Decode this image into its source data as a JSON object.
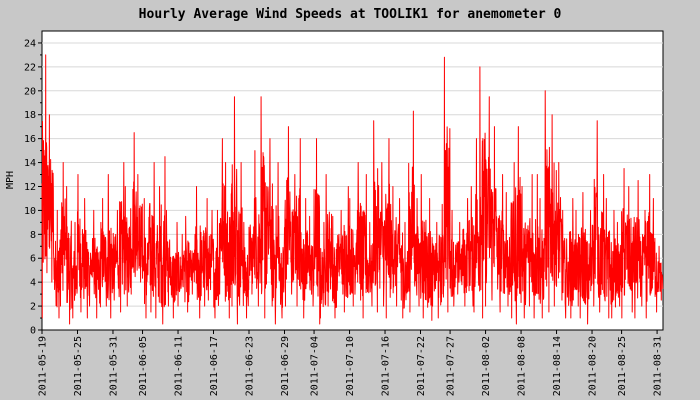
{
  "chart_data": {
    "type": "line",
    "title": "Hourly Average Wind Speeds at TOOLIK1 for anemometer 0",
    "xlabel": "",
    "ylabel": "MPH",
    "ylim": [
      0,
      25
    ],
    "yticks": [
      0,
      2,
      4,
      6,
      8,
      10,
      12,
      14,
      16,
      18,
      20,
      22,
      24
    ],
    "xlim": [
      "2011-05-19",
      "2011-09-01"
    ],
    "xticks": [
      "2011-05-19",
      "2011-05-25",
      "2011-05-31",
      "2011-06-05",
      "2011-06-11",
      "2011-06-17",
      "2011-06-23",
      "2011-06-29",
      "2011-07-04",
      "2011-07-10",
      "2011-07-16",
      "2011-07-22",
      "2011-07-27",
      "2011-08-02",
      "2011-08-08",
      "2011-08-14",
      "2011-08-20",
      "2011-08-25",
      "2011-08-31"
    ],
    "grid": true,
    "line_color": "#ff0000",
    "series": [
      {
        "name": "",
        "x": [
          "2011-05-19",
          "2011-05-20",
          "2011-05-21",
          "2011-05-22",
          "2011-05-23",
          "2011-05-24",
          "2011-05-25",
          "2011-05-26",
          "2011-05-27",
          "2011-05-28",
          "2011-05-29",
          "2011-05-30",
          "2011-05-31",
          "2011-06-01",
          "2011-06-02",
          "2011-06-03",
          "2011-06-04",
          "2011-06-05",
          "2011-06-06",
          "2011-06-07",
          "2011-06-08",
          "2011-06-09",
          "2011-06-10",
          "2011-06-11",
          "2011-06-12",
          "2011-06-13",
          "2011-06-14",
          "2011-06-15",
          "2011-06-16",
          "2011-06-17",
          "2011-06-18",
          "2011-06-19",
          "2011-06-20",
          "2011-06-21",
          "2011-06-22",
          "2011-06-23",
          "2011-06-24",
          "2011-06-25",
          "2011-06-26",
          "2011-06-27",
          "2011-06-28",
          "2011-06-29",
          "2011-06-30",
          "2011-07-01",
          "2011-07-02",
          "2011-07-03",
          "2011-07-04",
          "2011-07-05",
          "2011-07-06",
          "2011-07-07",
          "2011-07-08",
          "2011-07-09",
          "2011-07-10",
          "2011-07-11",
          "2011-07-12",
          "2011-07-13",
          "2011-07-14",
          "2011-07-15",
          "2011-07-16",
          "2011-07-17",
          "2011-07-18",
          "2011-07-19",
          "2011-07-20",
          "2011-07-21",
          "2011-07-22",
          "2011-07-23",
          "2011-07-24",
          "2011-07-25",
          "2011-07-26",
          "2011-07-27",
          "2011-07-28",
          "2011-07-29",
          "2011-07-30",
          "2011-07-31",
          "2011-08-01",
          "2011-08-02",
          "2011-08-03",
          "2011-08-04",
          "2011-08-05",
          "2011-08-06",
          "2011-08-07",
          "2011-08-08",
          "2011-08-09",
          "2011-08-10",
          "2011-08-11",
          "2011-08-12",
          "2011-08-13",
          "2011-08-14",
          "2011-08-15",
          "2011-08-16",
          "2011-08-17",
          "2011-08-18",
          "2011-08-19",
          "2011-08-20",
          "2011-08-21",
          "2011-08-22",
          "2011-08-23",
          "2011-08-24",
          "2011-08-25",
          "2011-08-26",
          "2011-08-27",
          "2011-08-28",
          "2011-08-29",
          "2011-08-30",
          "2011-08-31"
        ],
        "max": [
          23,
          18,
          10,
          14,
          12,
          9,
          13,
          11,
          10,
          9,
          11,
          13,
          10,
          14,
          12,
          16.5,
          13,
          11,
          14,
          12,
          14.5,
          10,
          9,
          8,
          9.5,
          8,
          12,
          11,
          10,
          10,
          16,
          14,
          19.5,
          14,
          9,
          11,
          15,
          19.5,
          16,
          14,
          9.5,
          17,
          13,
          16,
          11,
          9.5,
          16,
          9,
          13,
          9.5,
          10,
          12,
          11,
          14,
          13,
          9,
          17.5,
          14,
          16,
          12,
          11,
          9,
          18.3,
          11,
          13,
          11,
          9,
          10.5,
          22.8,
          10,
          9,
          11,
          12,
          16,
          22,
          19.5,
          17,
          13,
          11.5,
          14,
          17,
          12,
          13,
          13,
          11,
          20,
          18,
          14,
          10,
          11,
          10,
          11.5,
          10,
          17.5,
          13,
          11,
          10,
          9,
          13.5,
          12,
          12.5,
          10,
          13,
          11,
          7
        ],
        "min": [
          1,
          4,
          1,
          2,
          0.5,
          1,
          1.5,
          1,
          2,
          1,
          2,
          1,
          2.5,
          1.5,
          2,
          3,
          4,
          1,
          1.5,
          1,
          0.5,
          2,
          1,
          2,
          1.5,
          3,
          1,
          2,
          2.5,
          1,
          3,
          1,
          2,
          0.5,
          1,
          3,
          2,
          1,
          2,
          0.5,
          1,
          2,
          3,
          2,
          1,
          2,
          0.5,
          1,
          2,
          1,
          3,
          1.5,
          2,
          2.5,
          1,
          2,
          1.5,
          2,
          1,
          2,
          2.5,
          1,
          1.5,
          2,
          1,
          0.8,
          2,
          1,
          1.5,
          2,
          3,
          2,
          2,
          1.5,
          1,
          2,
          2.5,
          1.5,
          2,
          1,
          0.5,
          1,
          2,
          1,
          1,
          1.5,
          2,
          2.5,
          1,
          1,
          2,
          1,
          0.5,
          2,
          1.5,
          1,
          1,
          2,
          1,
          1.5,
          1,
          2,
          1,
          1.5,
          2.5
        ]
      }
    ]
  }
}
